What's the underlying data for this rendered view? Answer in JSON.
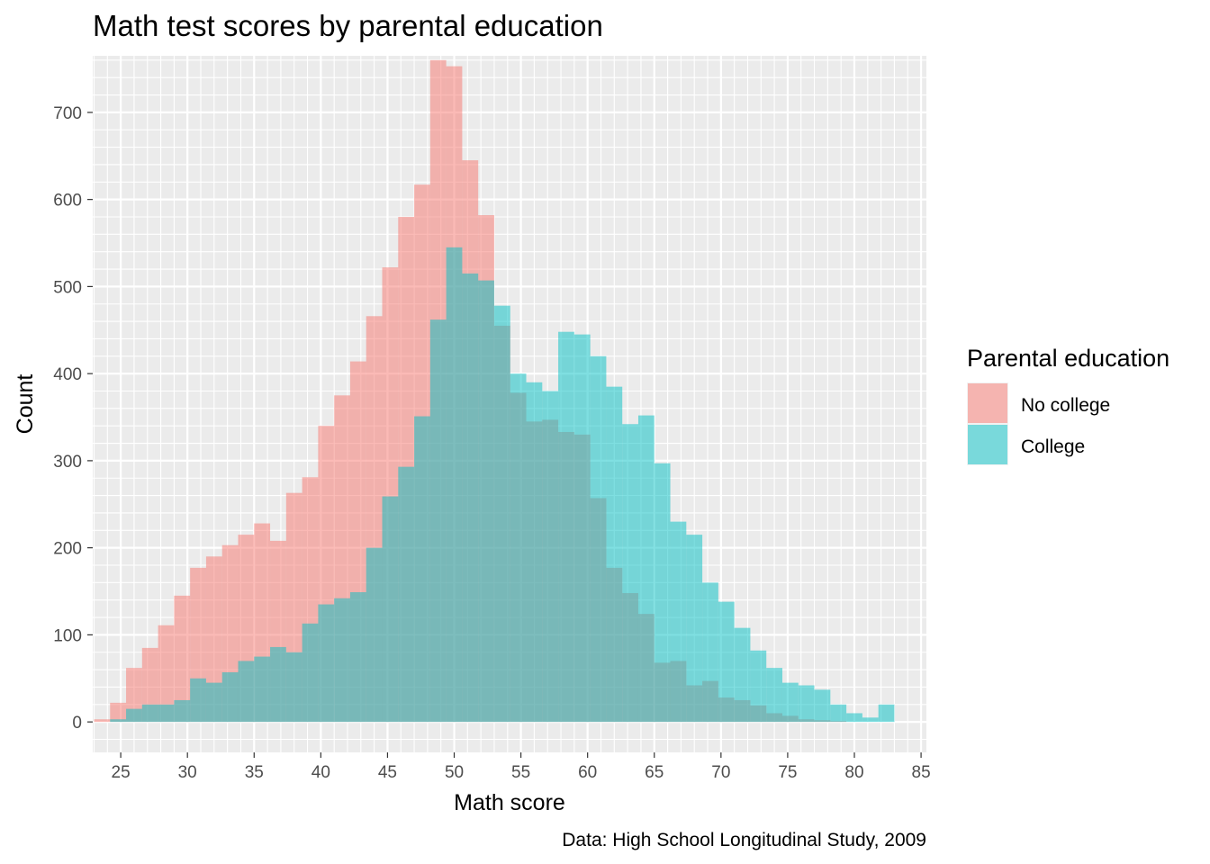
{
  "chart_data": {
    "type": "histogram",
    "title": "Math test scores by parental education",
    "xlabel": "Math score",
    "ylabel": "Count",
    "caption": "Data: High School Longitudinal Study, 2009",
    "xlim": [
      22.9,
      85.4
    ],
    "ylim": [
      -35,
      765
    ],
    "x_ticks": [
      25,
      30,
      35,
      40,
      45,
      50,
      55,
      60,
      65,
      70,
      75,
      80,
      85
    ],
    "y_ticks": [
      0,
      100,
      200,
      300,
      400,
      500,
      600,
      700
    ],
    "grid": true,
    "legend_position": "right",
    "legend_title": "Parental education",
    "bin_width": 1.2,
    "bin_starts": [
      23.0,
      24.2,
      25.4,
      26.6,
      27.8,
      29.0,
      30.2,
      31.4,
      32.6,
      33.8,
      35.0,
      36.2,
      37.4,
      38.6,
      39.8,
      41.0,
      42.2,
      43.4,
      44.6,
      45.8,
      47.0,
      48.2,
      49.4,
      50.6,
      51.8,
      53.0,
      54.2,
      55.4,
      56.6,
      57.8,
      59.0,
      60.2,
      61.4,
      62.6,
      63.8,
      65.0,
      66.2,
      67.4,
      68.6,
      69.8,
      71.0,
      72.2,
      73.4,
      74.6,
      75.8,
      77.0,
      78.2,
      79.4,
      80.6,
      81.8
    ],
    "series": [
      {
        "name": "No college",
        "color": "#F8766D",
        "values": [
          3,
          22,
          62,
          85,
          111,
          145,
          177,
          190,
          203,
          215,
          228,
          208,
          263,
          281,
          340,
          375,
          414,
          466,
          522,
          580,
          617,
          760,
          753,
          645,
          582,
          455,
          378,
          345,
          347,
          333,
          330,
          257,
          177,
          148,
          124,
          68,
          70,
          42,
          47,
          28,
          25,
          19,
          10,
          7,
          3,
          2,
          1,
          0,
          0,
          0
        ]
      },
      {
        "name": "College",
        "color": "#00BFC4",
        "values": [
          0,
          3,
          15,
          20,
          20,
          25,
          50,
          45,
          57,
          70,
          75,
          86,
          80,
          113,
          135,
          142,
          149,
          200,
          259,
          293,
          351,
          462,
          545,
          515,
          507,
          478,
          400,
          390,
          380,
          448,
          445,
          420,
          385,
          342,
          352,
          297,
          230,
          215,
          160,
          138,
          108,
          82,
          62,
          45,
          42,
          37,
          20,
          10,
          5,
          20
        ]
      }
    ]
  }
}
